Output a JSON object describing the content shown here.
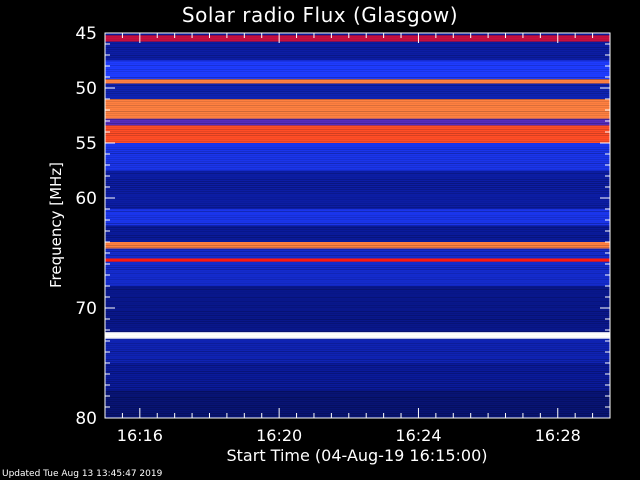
{
  "title": "Solar radio Flux (Glasgow)",
  "footer": "Updated Tue Aug 13 13:45:47 2019",
  "chart_data": {
    "type": "heatmap",
    "title": "Solar radio Flux (Glasgow)",
    "xlabel": "Start Time (04-Aug-19 16:15:00)",
    "ylabel": "Frequency [MHz]",
    "ylim": [
      45,
      80
    ],
    "y_inverted": true,
    "y_ticks": [
      45,
      50,
      55,
      60,
      70,
      80
    ],
    "x_ticks": [
      {
        "minute": 1,
        "label": "16:16"
      },
      {
        "minute": 5,
        "label": "16:20"
      },
      {
        "minute": 9,
        "label": "16:24"
      },
      {
        "minute": 13,
        "label": "16:28"
      }
    ],
    "colorscale": [
      "#000000",
      "#0a1a9a",
      "#1e3cff",
      "#ff0000",
      "#ffff80",
      "#ffffff"
    ],
    "bands": [
      {
        "from": 45.2,
        "to": 45.8,
        "level": 0.55
      },
      {
        "from": 45.8,
        "to": 47.5,
        "level": 0.22
      },
      {
        "from": 47.5,
        "to": 49.2,
        "level": 0.4
      },
      {
        "from": 49.2,
        "to": 49.6,
        "level": 0.7
      },
      {
        "from": 49.6,
        "to": 51.0,
        "level": 0.25
      },
      {
        "from": 51.0,
        "to": 52.8,
        "level": 0.7
      },
      {
        "from": 52.8,
        "to": 53.4,
        "level": 0.45
      },
      {
        "from": 53.4,
        "to": 55.0,
        "level": 0.66
      },
      {
        "from": 55.0,
        "to": 57.5,
        "level": 0.36
      },
      {
        "from": 57.5,
        "to": 61.0,
        "level": 0.22
      },
      {
        "from": 61.0,
        "to": 62.5,
        "level": 0.36
      },
      {
        "from": 62.5,
        "to": 64.0,
        "level": 0.2
      },
      {
        "from": 64.0,
        "to": 64.6,
        "level": 0.7
      },
      {
        "from": 64.6,
        "to": 65.5,
        "level": 0.3
      },
      {
        "from": 65.5,
        "to": 65.8,
        "level": 0.62
      },
      {
        "from": 65.8,
        "to": 68.0,
        "level": 0.3
      },
      {
        "from": 68.0,
        "to": 72.2,
        "level": 0.18
      },
      {
        "from": 72.2,
        "to": 72.8,
        "level": 1.0
      },
      {
        "from": 72.8,
        "to": 75.0,
        "level": 0.25
      },
      {
        "from": 75.0,
        "to": 77.5,
        "level": 0.2
      },
      {
        "from": 77.5,
        "to": 80.0,
        "level": 0.15
      }
    ]
  }
}
